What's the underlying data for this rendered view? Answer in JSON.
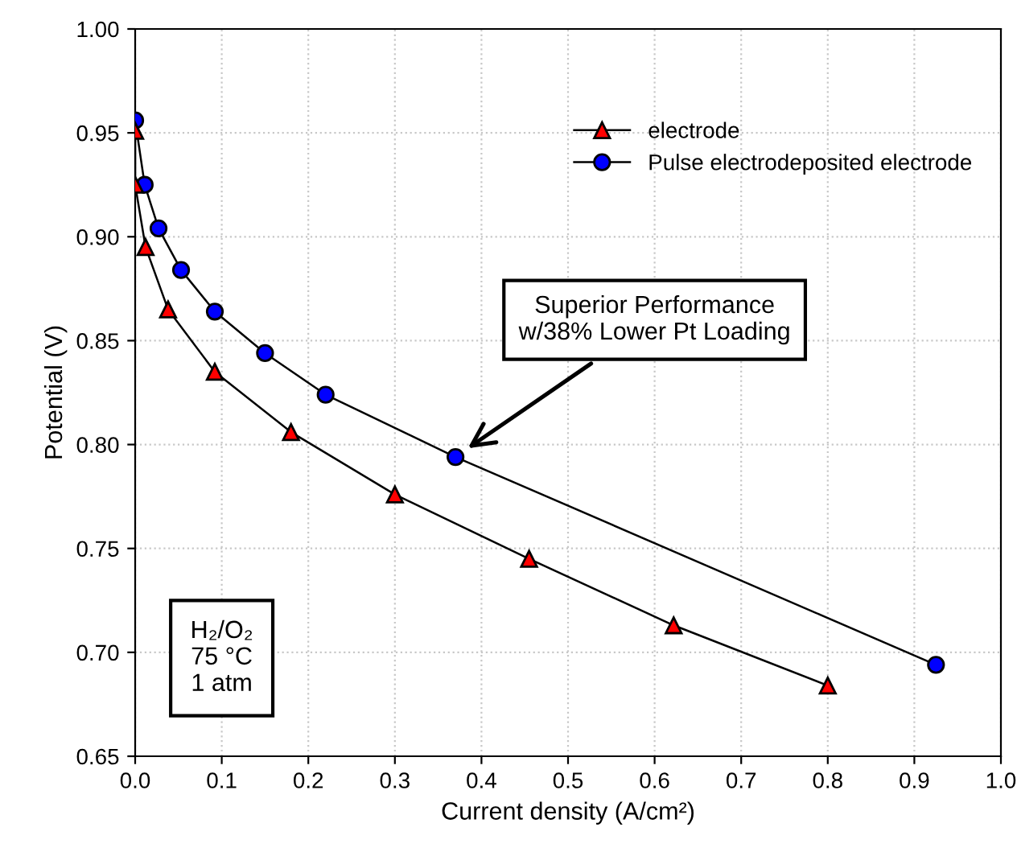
{
  "chart_data": {
    "type": "line",
    "xlabel": "Current density (A/cm²)",
    "ylabel": "Potential (V)",
    "xlim": [
      0,
      1
    ],
    "ylim": [
      0.65,
      1.0
    ],
    "xticks": [
      {
        "value": 0,
        "label": "0.0"
      },
      0.1,
      0.2,
      0.3,
      0.4,
      0.5,
      0.6,
      0.7,
      0.8,
      0.9,
      {
        "value": 1,
        "label": "1.0"
      }
    ],
    "yticks": [
      0.65,
      {
        "value": 0.7,
        "label": "0.70"
      },
      0.75,
      {
        "value": 0.8,
        "label": "0.80"
      },
      0.85,
      {
        "value": 0.9,
        "label": "0.90"
      },
      0.95,
      {
        "value": 1,
        "label": "1.00"
      }
    ],
    "grid": true,
    "legend": "top right",
    "line_style": "solid",
    "series": [
      {
        "name": "electrode",
        "color": "#ff0000",
        "marker": "triangle",
        "x": [
          0,
          0,
          0.012,
          0.038,
          0.092,
          0.18,
          0.3,
          0.455,
          0.622,
          0.8
        ],
        "values": [
          0.951,
          0.925,
          0.895,
          0.865,
          0.835,
          0.806,
          0.776,
          0.745,
          0.713,
          0.684
        ]
      },
      {
        "name": "Pulse electrodeposited electrode",
        "color": "#0000ff",
        "marker": "circle",
        "x": [
          0,
          0.011,
          0.027,
          0.053,
          0.092,
          0.15,
          0.22,
          0.37,
          0.925
        ],
        "values": [
          0.956,
          0.925,
          0.904,
          0.884,
          0.864,
          0.844,
          0.824,
          0.794,
          0.694
        ]
      }
    ],
    "annotations": [
      "Superior Performance\nw/38% Lower Pt Loading",
      "H₂/O₂\n75 °C\n1 atm"
    ]
  }
}
